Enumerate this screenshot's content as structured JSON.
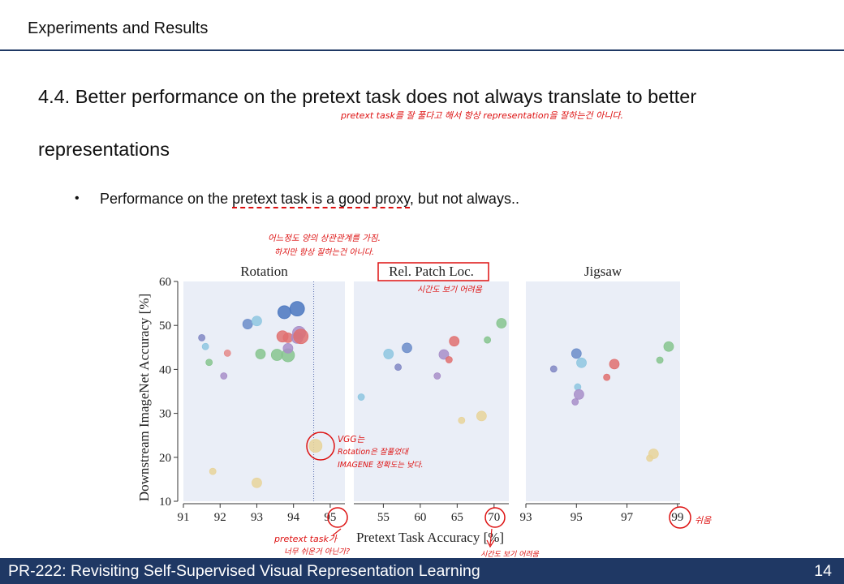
{
  "header": {
    "section": "Experiments and Results"
  },
  "slide": {
    "title_line1": "4.4. Better performance on the pretext task does not always translate to better",
    "title_line2": "representations",
    "bullet_pre": "Performance on the ",
    "bullet_highlight": "pretext task is a good proxy",
    "bullet_post": ", but not always.."
  },
  "annotations": {
    "title_note": "pretext task를 잘 풀다고 해서 항상 representation을 잘하는건 아니다.",
    "proxy_note_1": "어느정도 양의 상관관계를 가짐.",
    "proxy_note_2": "하지만 항상 잘하는건 아니다.",
    "patch_note": "시간도 보기 어려움",
    "vgg_note_1": "VGG는",
    "vgg_note_2": "Rotation은 잘풀었대",
    "vgg_note_3": "IMAGENE 정확도는 낮다.",
    "rot_axis_note_1": "pretext task가",
    "rot_axis_note_2": "너무 쉬운거 아닌가?",
    "patch_axis_note": "시간도 보기 어려움",
    "jigsaw_axis_note": "쉬움"
  },
  "footer": {
    "title": "PR-222: Revisiting Self-Supervised Visual Representation Learning",
    "page": "14"
  },
  "colors": {
    "accent": "#1f3864",
    "annotation": "#d11111",
    "plot_bg": "#eaeef7"
  },
  "chart_data": {
    "type": "scatter",
    "ylabel": "Downstream ImageNet Accuracy [%]",
    "xlabel": "Pretext Task Accuracy [%]",
    "ylim": [
      10,
      60
    ],
    "yticks": [
      10,
      20,
      30,
      40,
      50,
      60
    ],
    "panels": [
      {
        "title": "Rotation",
        "xlim": [
          91,
          95.4
        ],
        "xticks": [
          91,
          92,
          93,
          94,
          95
        ],
        "vline": 94.55,
        "points": [
          {
            "x": 91.5,
            "y": 47.2,
            "c": "#8187c4",
            "s": 4
          },
          {
            "x": 91.6,
            "y": 45.2,
            "c": "#8ec6e0",
            "s": 4
          },
          {
            "x": 91.7,
            "y": 41.6,
            "c": "#86c48e",
            "s": 4
          },
          {
            "x": 92.2,
            "y": 43.7,
            "c": "#e58a8a",
            "s": 4
          },
          {
            "x": 92.1,
            "y": 38.5,
            "c": "#a88ec9",
            "s": 4
          },
          {
            "x": 92.75,
            "y": 50.3,
            "c": "#6b8cc9",
            "s": 6
          },
          {
            "x": 93.0,
            "y": 51.0,
            "c": "#8ec6e0",
            "s": 6
          },
          {
            "x": 93.1,
            "y": 43.5,
            "c": "#86c48e",
            "s": 6
          },
          {
            "x": 93.55,
            "y": 43.3,
            "c": "#86c48e",
            "s": 7
          },
          {
            "x": 93.7,
            "y": 47.5,
            "c": "#e07070",
            "s": 7
          },
          {
            "x": 93.75,
            "y": 53.0,
            "c": "#4a76bf",
            "s": 8
          },
          {
            "x": 93.85,
            "y": 43.2,
            "c": "#86c48e",
            "s": 8
          },
          {
            "x": 93.85,
            "y": 44.8,
            "c": "#a88ec9",
            "s": 6
          },
          {
            "x": 93.85,
            "y": 47.2,
            "c": "#e07070",
            "s": 6
          },
          {
            "x": 94.1,
            "y": 47.2,
            "c": "#a88ec9",
            "s": 7
          },
          {
            "x": 94.1,
            "y": 53.8,
            "c": "#4a76bf",
            "s": 9
          },
          {
            "x": 94.15,
            "y": 48.3,
            "c": "#a88ec9",
            "s": 8
          },
          {
            "x": 94.2,
            "y": 47.5,
            "c": "#e07070",
            "s": 9
          },
          {
            "x": 94.6,
            "y": 22.6,
            "c": "#e8d39a",
            "s": 8
          },
          {
            "x": 91.8,
            "y": 16.8,
            "c": "#e8d39a",
            "s": 4
          },
          {
            "x": 93.0,
            "y": 14.2,
            "c": "#e8d39a",
            "s": 6
          }
        ]
      },
      {
        "title": "Rel. Patch Loc.",
        "xlim": [
          51,
          72
        ],
        "xticks": [
          55,
          60,
          65,
          70
        ],
        "points": [
          {
            "x": 52.0,
            "y": 33.7,
            "c": "#8ec6e0",
            "s": 4
          },
          {
            "x": 55.7,
            "y": 43.5,
            "c": "#8ec6e0",
            "s": 6
          },
          {
            "x": 57.0,
            "y": 40.5,
            "c": "#8187c4",
            "s": 4
          },
          {
            "x": 58.2,
            "y": 44.9,
            "c": "#6b8cc9",
            "s": 6
          },
          {
            "x": 62.3,
            "y": 38.5,
            "c": "#a88ec9",
            "s": 4
          },
          {
            "x": 63.2,
            "y": 43.4,
            "c": "#a88ec9",
            "s": 6
          },
          {
            "x": 63.9,
            "y": 42.2,
            "c": "#e07070",
            "s": 4
          },
          {
            "x": 64.6,
            "y": 46.4,
            "c": "#e07070",
            "s": 6
          },
          {
            "x": 65.6,
            "y": 28.4,
            "c": "#e8d39a",
            "s": 4
          },
          {
            "x": 68.3,
            "y": 29.4,
            "c": "#e8d39a",
            "s": 6
          },
          {
            "x": 69.1,
            "y": 46.7,
            "c": "#86c48e",
            "s": 4
          },
          {
            "x": 71.0,
            "y": 50.5,
            "c": "#86c48e",
            "s": 6
          }
        ]
      },
      {
        "title": "Jigsaw",
        "xlim": [
          93,
          99.1
        ],
        "xticks": [
          93,
          95,
          97,
          99
        ],
        "points": [
          {
            "x": 94.1,
            "y": 40.1,
            "c": "#8187c4",
            "s": 4
          },
          {
            "x": 95.0,
            "y": 43.6,
            "c": "#6b8cc9",
            "s": 6
          },
          {
            "x": 95.2,
            "y": 41.5,
            "c": "#8ec6e0",
            "s": 6
          },
          {
            "x": 95.05,
            "y": 36.0,
            "c": "#8ec6e0",
            "s": 4
          },
          {
            "x": 95.1,
            "y": 34.3,
            "c": "#a88ec9",
            "s": 6
          },
          {
            "x": 94.95,
            "y": 32.6,
            "c": "#a88ec9",
            "s": 4
          },
          {
            "x": 96.2,
            "y": 38.2,
            "c": "#e07070",
            "s": 4
          },
          {
            "x": 96.5,
            "y": 41.2,
            "c": "#e07070",
            "s": 6
          },
          {
            "x": 97.9,
            "y": 19.8,
            "c": "#e8d39a",
            "s": 4
          },
          {
            "x": 98.05,
            "y": 20.8,
            "c": "#e8d39a",
            "s": 6
          },
          {
            "x": 98.3,
            "y": 42.1,
            "c": "#86c48e",
            "s": 4
          },
          {
            "x": 98.65,
            "y": 45.2,
            "c": "#86c48e",
            "s": 6
          }
        ]
      }
    ]
  }
}
